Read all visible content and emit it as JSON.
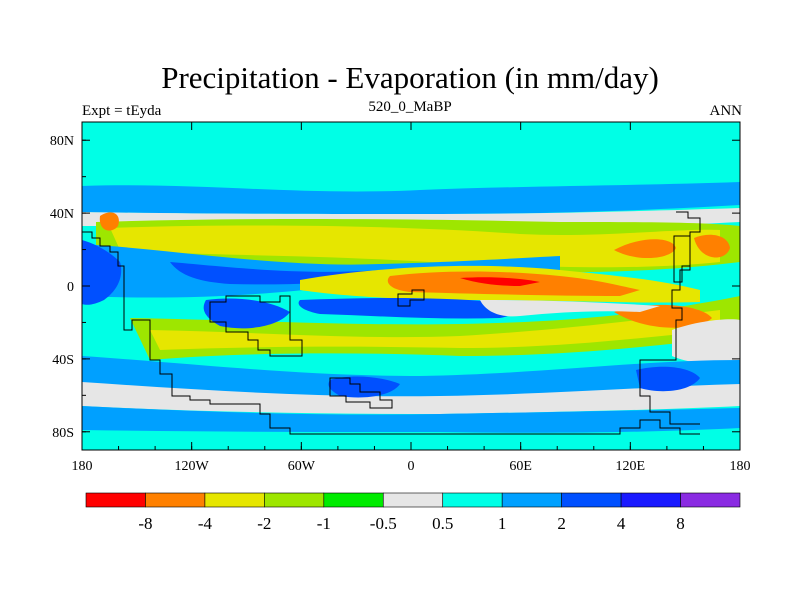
{
  "chart_data": {
    "type": "heatmap",
    "title": "Precipitation - Evaporation (in mm/day)",
    "left_string": "Expt = tEyda",
    "center_string": "520_0_MaBP",
    "right_string": "ANN",
    "xlabel": "",
    "ylabel": "",
    "x_range": [
      -180,
      180
    ],
    "y_range": [
      -90,
      90
    ],
    "x_ticks": [
      {
        "value": -180,
        "label": "180"
      },
      {
        "value": -120,
        "label": "120W"
      },
      {
        "value": -60,
        "label": "60W"
      },
      {
        "value": 0,
        "label": "0"
      },
      {
        "value": 60,
        "label": "60E"
      },
      {
        "value": 120,
        "label": "120E"
      },
      {
        "value": 180,
        "label": "180"
      }
    ],
    "y_ticks": [
      {
        "value": 80,
        "label": "80N"
      },
      {
        "value": 40,
        "label": "40N"
      },
      {
        "value": 0,
        "label": "0"
      },
      {
        "value": -40,
        "label": "40S"
      },
      {
        "value": -80,
        "label": "80S"
      }
    ],
    "colorbar": {
      "colors": [
        "#ff0000",
        "#ff8000",
        "#e6e600",
        "#9ee600",
        "#00ec00",
        "#e6e6e6",
        "#00ffe6",
        "#00a0ff",
        "#0050ff",
        "#1a1aff",
        "#8a2be2"
      ],
      "level_labels": [
        "-8",
        "-4",
        "-2",
        "-1",
        "-0.5",
        "0.5",
        "1",
        "2",
        "4",
        "8"
      ]
    },
    "background_level_color": "#00ffe6",
    "regions": [
      {
        "level": "0.5 to 1",
        "color": "#00ffe6",
        "description": "high latitudes north and south (background)"
      },
      {
        "level": "1 to 2",
        "color": "#00a0ff",
        "description": "northern mid-latitude band near 50N"
      },
      {
        "level": "-2 to -1",
        "color": "#e6e600",
        "description": "northern subtropics 10N-35N"
      },
      {
        "level": "-4 to -2",
        "color": "#ff8000",
        "description": "central and western tropics near 0-10N"
      },
      {
        "level": "2 to 4",
        "color": "#0050ff",
        "description": "equatorial and southern ocean bands"
      },
      {
        "level": "-2 to -1",
        "color": "#e6e600",
        "description": "southern subtropics 10S-35S"
      }
    ]
  }
}
